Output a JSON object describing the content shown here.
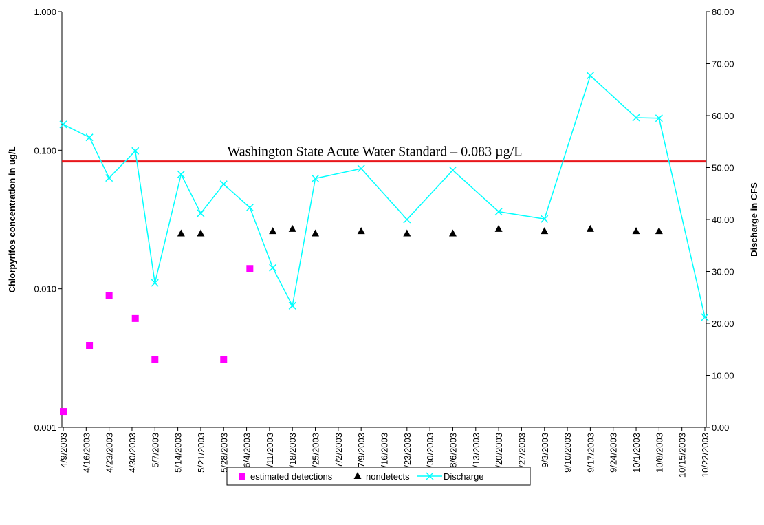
{
  "chart_data": {
    "type": "line",
    "y_label": "Chlorpyrifos concentration in ug/L",
    "y2_label": "Discharge in CFS",
    "ylog": true,
    "ylim": [
      0.001,
      1
    ],
    "yticks": [
      0.001,
      {
        "value": 0.01,
        "label": "0.010"
      },
      {
        "value": 0.1,
        "label": "0.100"
      },
      {
        "value": 1,
        "label": "1.000"
      }
    ],
    "y2lim": [
      0,
      80
    ],
    "y2ticks": [
      {
        "value": 0,
        "label": "0.00"
      },
      {
        "value": 10,
        "label": "10.00"
      },
      {
        "value": 20,
        "label": "20.00"
      },
      {
        "value": 30,
        "label": "30.00"
      },
      {
        "value": 40,
        "label": "40.00"
      },
      {
        "value": 50,
        "label": "50.00"
      },
      {
        "value": 60,
        "label": "60.00"
      },
      {
        "value": 70,
        "label": "70.00"
      },
      {
        "value": 80,
        "label": "80.00"
      }
    ],
    "xlim": [
      "4/9/2003",
      "10/22/2003"
    ],
    "xticks": [
      "4/9/2003",
      "4/16/2003",
      "4/23/2003",
      "4/30/2003",
      "5/7/2003",
      "5/14/2003",
      "5/21/2003",
      "5/28/2003",
      "6/4/2003",
      "6/11/2003",
      "6/18/2003",
      "6/25/2003",
      "7/2/2003",
      "7/9/2003",
      "7/16/2003",
      "7/23/2003",
      "7/30/2003",
      "8/6/2003",
      "8/13/2003",
      "8/20/2003",
      "8/27/2003",
      "9/3/2003",
      "9/10/2003",
      "9/17/2003",
      "9/24/2003",
      "10/1/2003",
      "10/8/2003",
      "10/15/2003",
      "10/22/2003"
    ],
    "hline": {
      "value": 0.083,
      "label": "Washington State Acute Water Standard – 0.083 µg/L",
      "color": "#e8161b"
    },
    "series": [
      {
        "name": "estimated detections",
        "type": "square",
        "color": "#ff00ff",
        "x": [
          "4/9/2003",
          "4/17/2003",
          "4/23/2003",
          "5/1/2003",
          "5/7/2003",
          "5/28/2003",
          "6/5/2003"
        ],
        "values": [
          0.0013,
          0.0039,
          0.0089,
          0.0061,
          0.0031,
          0.0031,
          0.014
        ]
      },
      {
        "name": "nondetects",
        "type": "triangle",
        "color": "#000000",
        "x": [
          "5/15/2003",
          "5/21/2003",
          "6/12/2003",
          "6/18/2003",
          "6/25/2003",
          "7/9/2003",
          "7/23/2003",
          "8/6/2003",
          "8/20/2003",
          "9/3/2003",
          "9/17/2003",
          "10/1/2003",
          "10/8/2003"
        ],
        "values": [
          0.025,
          0.025,
          0.026,
          0.027,
          0.025,
          0.026,
          0.025,
          0.025,
          0.027,
          0.026,
          0.027,
          0.026,
          0.026
        ]
      },
      {
        "name": "Discharge",
        "type": "line",
        "axis": "y2",
        "color": "#00ffff",
        "x": [
          "4/9/2003",
          "4/17/2003",
          "4/23/2003",
          "5/1/2003",
          "5/7/2003",
          "5/15/2003",
          "5/21/2003",
          "5/28/2003",
          "6/5/2003",
          "6/12/2003",
          "6/18/2003",
          "6/25/2003",
          "7/9/2003",
          "7/23/2003",
          "8/6/2003",
          "8/20/2003",
          "9/3/2003",
          "9/17/2003",
          "10/1/2003",
          "10/8/2003",
          "10/22/2003"
        ],
        "values": [
          58.3,
          55.8,
          48.0,
          53.2,
          27.8,
          48.7,
          41.2,
          46.8,
          42.3,
          30.7,
          23.4,
          47.9,
          49.8,
          40.0,
          49.5,
          41.5,
          40.1,
          67.7,
          59.6,
          59.5,
          21.2
        ]
      }
    ]
  }
}
